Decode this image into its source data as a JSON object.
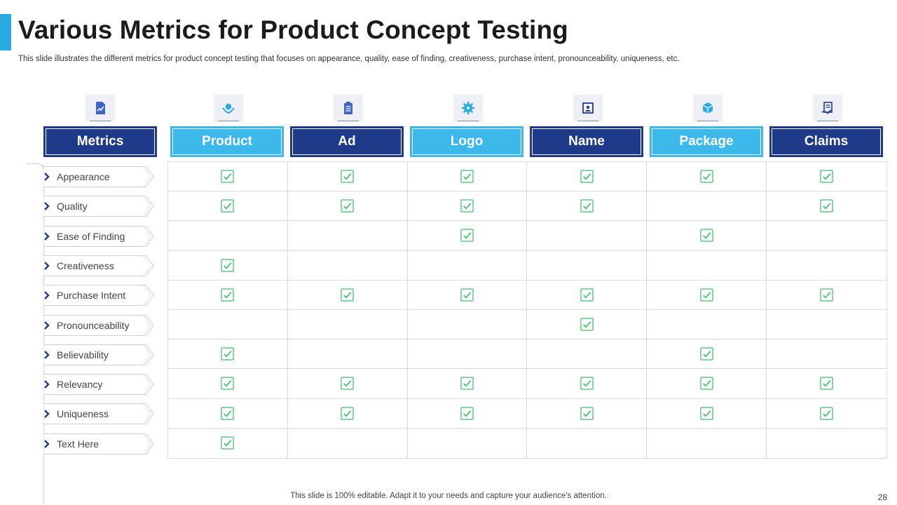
{
  "slide": {
    "title": "Various Metrics for Product Concept Testing",
    "subtitle": "This slide illustrates the different metrics for product concept testing that focuses on appearance, quality, ease of finding, creativeness, purchase intent, pronounceability, uniqueness, etc.",
    "footer": "This slide is 100% editable. Adapt it to your needs and capture your audience's attention.",
    "page_number": "28"
  },
  "colors": {
    "accent": "#29abe2",
    "header_dark": "#203a8a",
    "header_light": "#3db8ea",
    "check": "#3fbf6a"
  },
  "table": {
    "metrics_header": "Metrics",
    "columns": [
      {
        "label": "Product",
        "icon": "hand-leaf-icon",
        "style": "light"
      },
      {
        "label": "Ad",
        "icon": "clipboard-icon",
        "style": "dark"
      },
      {
        "label": "Logo",
        "icon": "gear-icon",
        "style": "light"
      },
      {
        "label": "Name",
        "icon": "id-card-icon",
        "style": "dark"
      },
      {
        "label": "Package",
        "icon": "box-icon",
        "style": "light"
      },
      {
        "label": "Claims",
        "icon": "contract-icon",
        "style": "dark"
      }
    ],
    "metrics_icon": "chart-document-icon",
    "rows": [
      {
        "metric": "Appearance",
        "checks": [
          true,
          true,
          true,
          true,
          true,
          true
        ]
      },
      {
        "metric": "Quality",
        "checks": [
          true,
          true,
          true,
          true,
          false,
          true
        ]
      },
      {
        "metric": "Ease of Finding",
        "checks": [
          false,
          false,
          true,
          false,
          true,
          false
        ]
      },
      {
        "metric": "Creativeness",
        "checks": [
          true,
          false,
          false,
          false,
          false,
          false
        ]
      },
      {
        "metric": "Purchase Intent",
        "checks": [
          true,
          true,
          true,
          true,
          true,
          true
        ]
      },
      {
        "metric": "Pronounceability",
        "checks": [
          false,
          false,
          false,
          true,
          false,
          false
        ]
      },
      {
        "metric": "Believability",
        "checks": [
          true,
          false,
          false,
          false,
          true,
          false
        ]
      },
      {
        "metric": "Relevancy",
        "checks": [
          true,
          true,
          true,
          true,
          true,
          true
        ]
      },
      {
        "metric": "Uniqueness",
        "checks": [
          true,
          true,
          true,
          true,
          true,
          true
        ]
      },
      {
        "metric": "Text Here",
        "checks": [
          true,
          false,
          false,
          false,
          false,
          false
        ]
      }
    ]
  }
}
